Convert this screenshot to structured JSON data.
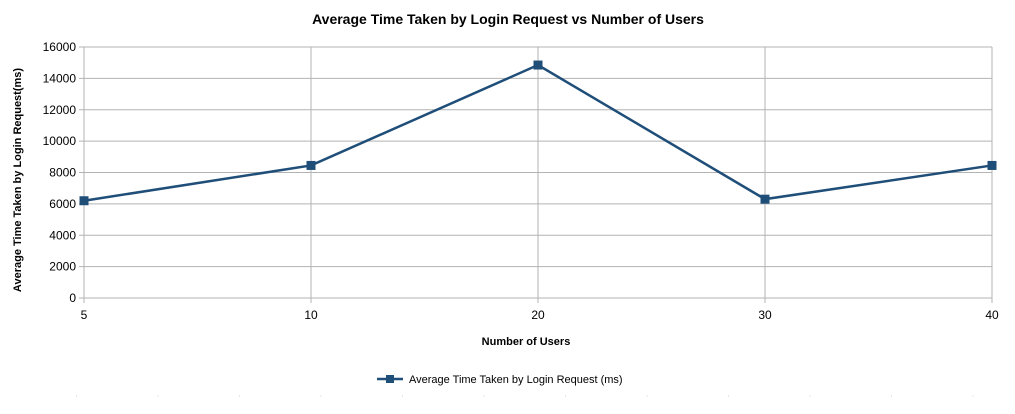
{
  "chart_data": {
    "type": "line",
    "title": "Average Time Taken by Login Request vs Number of Users",
    "xlabel": "Number of Users",
    "ylabel": "Average Time Taken by Login Request(ms)",
    "categories": [
      "5",
      "10",
      "20",
      "30",
      "40"
    ],
    "series": [
      {
        "name": "Average Time Taken by Login Request (ms)",
        "values": [
          6200,
          8450,
          14850,
          6300,
          8450
        ],
        "color": "#1f4e79",
        "marker": "square"
      }
    ],
    "ylim": [
      0,
      16000
    ],
    "yticks": [
      0,
      2000,
      4000,
      6000,
      8000,
      10000,
      12000,
      14000,
      16000
    ],
    "grid": true,
    "legend_position": "bottom"
  }
}
